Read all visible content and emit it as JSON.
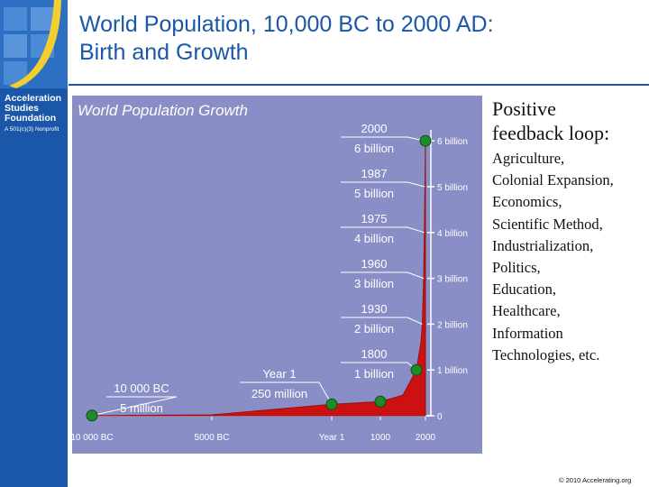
{
  "slide": {
    "title_line1": "World Population, 10,000 BC to 2000 AD:",
    "title_line2": "Birth and Growth",
    "org_line1": "Acceleration",
    "org_line2": "Studies",
    "org_line3": "Foundation",
    "org_subtitle": "A 501(c)(3) Nonprofit",
    "side_heading_line1": "Positive",
    "side_heading_line2": "feedback loop:",
    "side_items": [
      "Agriculture,",
      "Colonial Expansion,",
      "Economics,",
      "Scientific Method,",
      "Industrialization,",
      "Politics,",
      "Education,",
      "Healthcare,",
      "Information",
      "Technologies, etc."
    ],
    "copyright": "© 2010 Accelerating.org"
  },
  "colors": {
    "band": "#1a57a8",
    "logo": "#2d6fc2",
    "chart_bg": "#8a8ec6",
    "area": "#cc1111",
    "marker": "#1e8a2a"
  },
  "chart_data": {
    "type": "area",
    "title": "World Population Growth",
    "x_tick_labels": [
      "10 000 BC",
      "5000 BC",
      "Year 1",
      "1000",
      "2000"
    ],
    "y_tick_labels": [
      "0",
      "1 billion",
      "2 billion",
      "3 billion",
      "4 billion",
      "5 billion",
      "6 billion"
    ],
    "ylim": [
      0,
      6.2
    ],
    "curve": [
      {
        "year": -10000,
        "pop": 0.005
      },
      {
        "year": -5000,
        "pop": 0.02
      },
      {
        "year": 1,
        "pop": 0.25
      },
      {
        "year": 1000,
        "pop": 0.31
      },
      {
        "year": 1500,
        "pop": 0.45
      },
      {
        "year": 1800,
        "pop": 1.0
      },
      {
        "year": 1900,
        "pop": 1.6
      },
      {
        "year": 1930,
        "pop": 2.0
      },
      {
        "year": 1960,
        "pop": 3.0
      },
      {
        "year": 1975,
        "pop": 4.0
      },
      {
        "year": 1987,
        "pop": 5.0
      },
      {
        "year": 2000,
        "pop": 6.0
      }
    ],
    "markers": [
      {
        "year": -10000,
        "pop": 0.005
      },
      {
        "year": 1,
        "pop": 0.25
      },
      {
        "year": 1000,
        "pop": 0.31
      },
      {
        "year": 1800,
        "pop": 1.0
      },
      {
        "year": 2000,
        "pop": 6.0
      }
    ],
    "callouts": [
      {
        "year_label": "10 000 BC",
        "pop_label": "5 million",
        "year": -10000,
        "pop": 0.005
      },
      {
        "year_label": "Year 1",
        "pop_label": "250 million",
        "year": 1,
        "pop": 0.25
      },
      {
        "year_label": "1800",
        "pop_label": "1 billion",
        "year": 1800,
        "pop": 1.0
      },
      {
        "year_label": "1930",
        "pop_label": "2 billion",
        "year": 1930,
        "pop": 2.0
      },
      {
        "year_label": "1960",
        "pop_label": "3 billion",
        "year": 1960,
        "pop": 3.0
      },
      {
        "year_label": "1975",
        "pop_label": "4 billion",
        "year": 1975,
        "pop": 4.0
      },
      {
        "year_label": "1987",
        "pop_label": "5 billion",
        "year": 1987,
        "pop": 5.0
      },
      {
        "year_label": "2000",
        "pop_label": "6 billion",
        "year": 2000,
        "pop": 6.0
      }
    ]
  }
}
